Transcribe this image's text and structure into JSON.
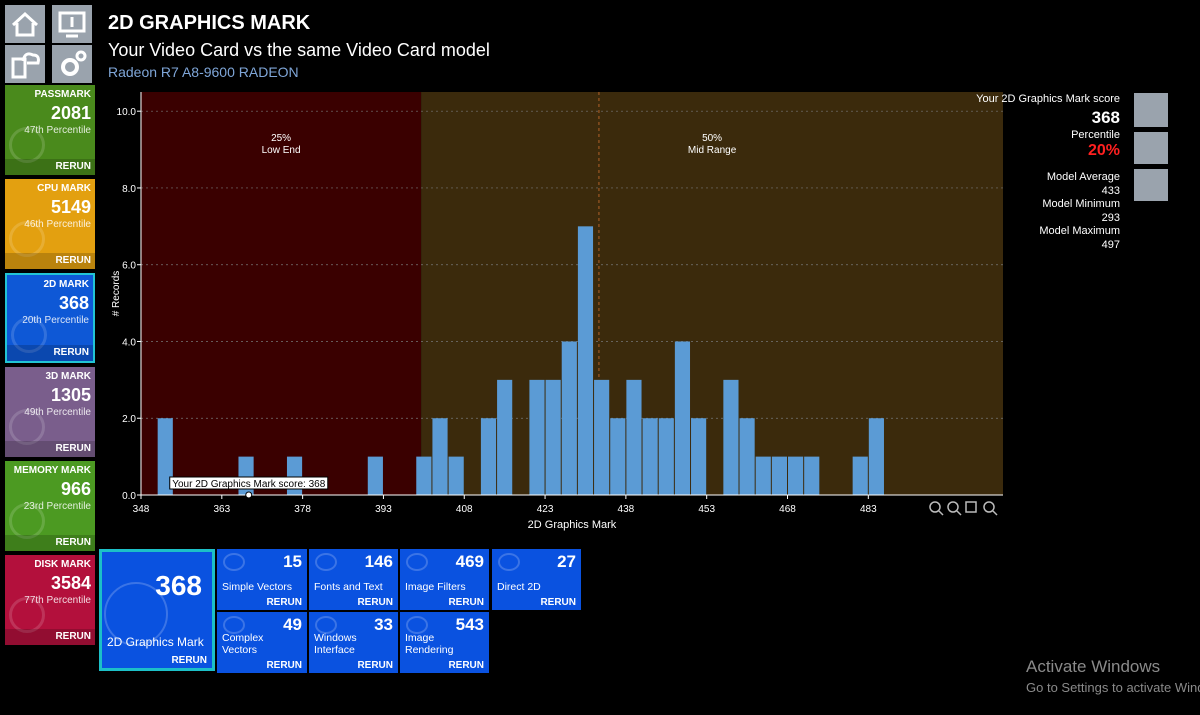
{
  "header": {
    "title": "2D GRAPHICS MARK",
    "subtitle": "Your Video Card vs the same Video Card model",
    "model": "Radeon R7 A8-9600 RADEON"
  },
  "sidebar": [
    {
      "title": "PASSMARK",
      "score": "2081",
      "percentile": "47th Percentile",
      "action": "RERUN",
      "color": "#4a8a1c"
    },
    {
      "title": "CPU MARK",
      "score": "5149",
      "percentile": "46th Percentile",
      "action": "RERUN",
      "color": "#e3a010"
    },
    {
      "title": "2D MARK",
      "score": "368",
      "percentile": "20th Percentile",
      "action": "RERUN",
      "color": "#0e58d6",
      "selected": true
    },
    {
      "title": "3D MARK",
      "score": "1305",
      "percentile": "49th Percentile",
      "action": "RERUN",
      "color": "#7a5e8c"
    },
    {
      "title": "MEMORY MARK",
      "score": "966",
      "percentile": "23rd Percentile",
      "action": "RERUN",
      "color": "#4c9a22"
    },
    {
      "title": "DISK MARK",
      "score": "3584",
      "percentile": "77th Percentile",
      "action": "RERUN",
      "color": "#b3103c"
    }
  ],
  "chart_data": {
    "type": "histogram",
    "x_label": "2D Graphics Mark",
    "y_label": "# Records",
    "bins": [
      351,
      354,
      357,
      360,
      363,
      366,
      369,
      372,
      375,
      378,
      381,
      384,
      387,
      390,
      393,
      396,
      399,
      402,
      405,
      408,
      411,
      414,
      417,
      420,
      423,
      426,
      429,
      432,
      435,
      438,
      441,
      444,
      447,
      450,
      453,
      456,
      459,
      462,
      465,
      468,
      471,
      474,
      477,
      480,
      483,
      486
    ],
    "counts": [
      2,
      0,
      0,
      0,
      0,
      1,
      0,
      0,
      1,
      0,
      0,
      0,
      0,
      1,
      0,
      0,
      1,
      2,
      1,
      0,
      2,
      3,
      0,
      3,
      3,
      4,
      7,
      3,
      2,
      3,
      2,
      2,
      4,
      2,
      0,
      3,
      2,
      1,
      1,
      1,
      1,
      0,
      0,
      1,
      2
    ],
    "color": "#5b9bd5",
    "xlim": [
      348,
      508
    ],
    "ylim": [
      0,
      10.5
    ],
    "xticks": [
      348,
      363,
      378,
      393,
      408,
      423,
      438,
      453,
      468,
      483
    ],
    "yticks": [
      {
        "value": 0,
        "label": "0.0"
      },
      {
        "value": 2,
        "label": "2.0"
      },
      {
        "value": 4,
        "label": "4.0"
      },
      {
        "value": 6,
        "label": "6.0"
      },
      {
        "value": 8,
        "label": "8.0"
      },
      {
        "value": 10,
        "label": "10.0"
      }
    ],
    "grid": true,
    "regions": [
      {
        "from": 348,
        "to": 400,
        "label": "25%",
        "sublabel": "Low End",
        "color": "#3a0000"
      },
      {
        "from": 400,
        "to": 508,
        "label": "50%",
        "sublabel": "Mid Range",
        "color": "#3b2a0c"
      }
    ],
    "average": 433,
    "marker": {
      "value": 368,
      "label": "Your 2D Graphics Mark score: 368"
    }
  },
  "summary": {
    "score_label": "Your 2D Graphics Mark score",
    "score": "368",
    "percentile_label": "Percentile",
    "percentile": "20%",
    "average_label": "Model Average",
    "average": "433",
    "minimum_label": "Model Minimum",
    "minimum": "293",
    "maximum_label": "Model Maximum",
    "maximum": "497"
  },
  "tests": {
    "main": {
      "score": "368",
      "name": "2D Graphics Mark",
      "action": "RERUN"
    },
    "items": [
      {
        "score": "15",
        "name": "Simple Vectors",
        "action": "RERUN"
      },
      {
        "score": "146",
        "name": "Fonts and Text",
        "action": "RERUN"
      },
      {
        "score": "469",
        "name": "Image Filters",
        "action": "RERUN"
      },
      {
        "score": "27",
        "name": "Direct 2D",
        "action": "RERUN"
      },
      {
        "score": "49",
        "name": "Complex Vectors",
        "action": "RERUN"
      },
      {
        "score": "33",
        "name": "Windows Interface",
        "action": "RERUN"
      },
      {
        "score": "543",
        "name": "Image Rendering",
        "action": "RERUN"
      }
    ]
  },
  "watermark": {
    "title": "Activate Windows",
    "text": "Go to Settings to activate Windows."
  }
}
